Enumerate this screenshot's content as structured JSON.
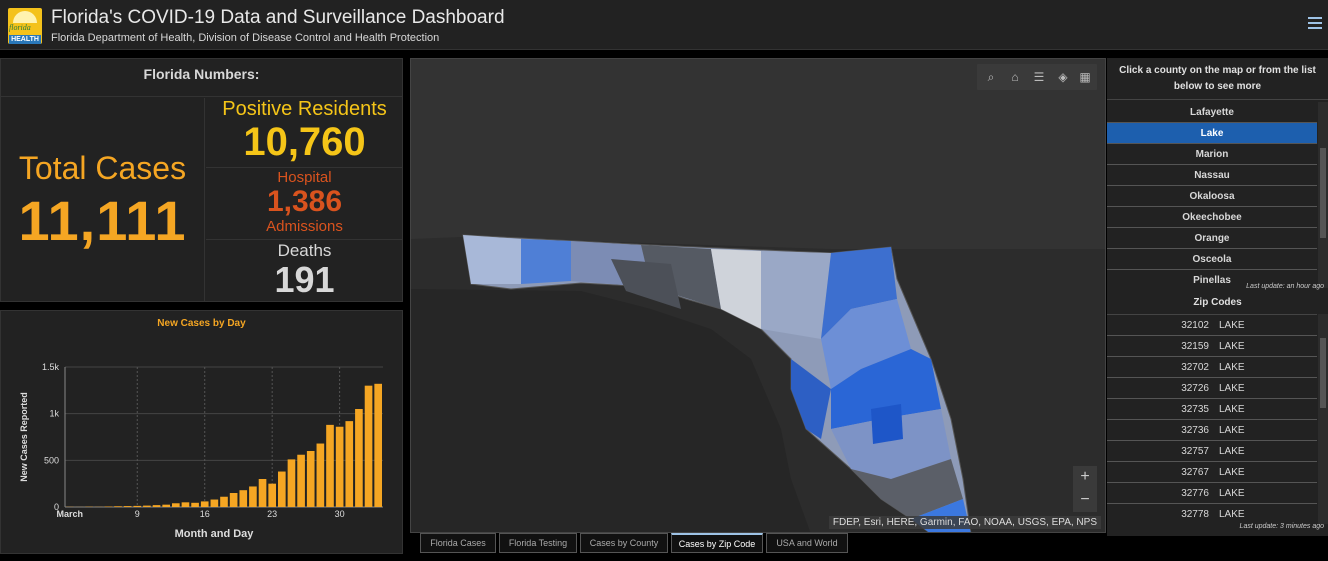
{
  "header": {
    "title": "Florida's COVID-19 Data and Surveillance Dashboard",
    "subtitle": "Florida Department of Health, Division of Disease Control and Health Protection",
    "logo_word1": "florida",
    "logo_word2": "HEALTH"
  },
  "numbers": {
    "panel_title": "Florida Numbers:",
    "total_label": "Total Cases",
    "total_value": "11,111",
    "positive_label": "Positive Residents",
    "positive_value": "10,760",
    "hospital_label1": "Hospital",
    "hospital_value": "1,386",
    "hospital_label2": "Admissions",
    "deaths_label": "Deaths",
    "deaths_value": "191"
  },
  "chart_data": {
    "type": "bar",
    "title": "New Cases by Day",
    "xlabel": "Month and Day",
    "ylabel": "New Cases Reported",
    "ylim": [
      0,
      1500
    ],
    "yticks": [
      "0",
      "500",
      "1k",
      "1.5k"
    ],
    "xticks": [
      "March",
      "9",
      "16",
      "23",
      "30"
    ],
    "values": [
      2,
      1,
      3,
      2,
      5,
      8,
      10,
      12,
      15,
      20,
      25,
      40,
      50,
      45,
      60,
      80,
      110,
      150,
      180,
      220,
      300,
      250,
      380,
      510,
      560,
      600,
      680,
      880,
      860,
      920,
      1050,
      1300,
      1320
    ],
    "color": "#f5a623",
    "grid": true
  },
  "map": {
    "attribution": "FDEP, Esri, HERE, Garmin, FAO, NOAA, USGS, EPA, NPS",
    "zoom_in": "+",
    "zoom_out": "−"
  },
  "right_panel": {
    "instructions": "Click a county on the map or from the list below to see more",
    "counties": [
      "Lafayette",
      "Lake",
      "Marion",
      "Nassau",
      "Okaloosa",
      "Okeechobee",
      "Orange",
      "Osceola",
      "Pinellas"
    ],
    "selected_county": "Lake",
    "county_update": "Last update: an hour ago",
    "zip_title": "Zip Codes",
    "zips": [
      {
        "code": "32102",
        "county": "LAKE"
      },
      {
        "code": "32159",
        "county": "LAKE"
      },
      {
        "code": "32702",
        "county": "LAKE"
      },
      {
        "code": "32726",
        "county": "LAKE"
      },
      {
        "code": "32735",
        "county": "LAKE"
      },
      {
        "code": "32736",
        "county": "LAKE"
      },
      {
        "code": "32757",
        "county": "LAKE"
      },
      {
        "code": "32767",
        "county": "LAKE"
      },
      {
        "code": "32776",
        "county": "LAKE"
      },
      {
        "code": "32778",
        "county": "LAKE"
      }
    ],
    "zip_update": "Last update: 3 minutes ago"
  },
  "tabs": [
    "Florida Cases",
    "Florida Testing",
    "Cases by County",
    "Cases by Zip Code",
    "USA and World"
  ],
  "active_tab": "Cases by Zip Code"
}
